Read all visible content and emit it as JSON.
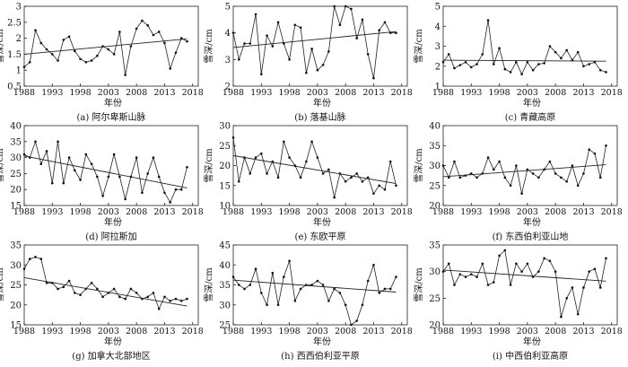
{
  "chart_data": [
    {
      "type": "line",
      "caption": "(a) 阿尔卑斯山脉",
      "xlabel": "年份",
      "ylabel": "雪深/cm",
      "xlim": [
        1988,
        2019
      ],
      "ylim": [
        0.5,
        3
      ],
      "xticks": [
        1988,
        1993,
        1998,
        2003,
        2008,
        2013,
        2018
      ],
      "yticks": [
        0.5,
        1,
        1.5,
        2,
        2.5,
        3
      ],
      "yticklabels": [
        "0.5",
        "1",
        "1.5",
        "2",
        "2.5",
        "3"
      ],
      "x": [
        1988,
        1989,
        1990,
        1991,
        1992,
        1993,
        1994,
        1995,
        1996,
        1997,
        1998,
        1999,
        2000,
        2001,
        2002,
        2003,
        2004,
        2005,
        2006,
        2007,
        2008,
        2009,
        2010,
        2011,
        2012,
        2013,
        2014,
        2015,
        2016,
        2017
      ],
      "values": [
        1.1,
        1.25,
        2.25,
        1.85,
        1.65,
        1.5,
        1.3,
        1.95,
        2.05,
        1.6,
        1.35,
        1.25,
        1.3,
        1.45,
        1.75,
        1.65,
        1.5,
        2.2,
        0.85,
        1.75,
        2.3,
        2.55,
        2.4,
        2.1,
        2.2,
        1.85,
        1.05,
        1.55,
        2.0,
        1.9
      ],
      "trend": [
        1.5,
        1.98
      ]
    },
    {
      "type": "line",
      "caption": "(b) 落基山脉",
      "xlabel": "年份",
      "ylabel": "雪深/cm",
      "xlim": [
        1988,
        2019
      ],
      "ylim": [
        2,
        5
      ],
      "xticks": [
        1988,
        1993,
        1998,
        2003,
        2008,
        2013,
        2018
      ],
      "yticks": [
        2,
        3,
        4,
        5
      ],
      "yticklabels": [
        "2",
        "3",
        "4",
        "5"
      ],
      "x": [
        1988,
        1989,
        1990,
        1991,
        1992,
        1993,
        1994,
        1995,
        1996,
        1997,
        1998,
        1999,
        2000,
        2001,
        2002,
        2003,
        2004,
        2005,
        2006,
        2007,
        2008,
        2009,
        2010,
        2011,
        2012,
        2013,
        2014,
        2015,
        2016,
        2017
      ],
      "values": [
        4.0,
        3.0,
        3.6,
        3.6,
        4.7,
        2.45,
        3.9,
        3.5,
        4.4,
        3.6,
        3.0,
        4.3,
        4.2,
        2.5,
        3.4,
        2.6,
        2.8,
        3.3,
        5.0,
        4.3,
        5.0,
        4.9,
        3.8,
        4.5,
        3.2,
        2.3,
        4.1,
        4.4,
        4.0,
        4.0
      ],
      "trend": [
        3.45,
        4.05
      ]
    },
    {
      "type": "line",
      "caption": "(c) 青藏高原",
      "xlabel": "年份",
      "ylabel": "雪深/cm",
      "xlim": [
        1988,
        2019
      ],
      "ylim": [
        1,
        5
      ],
      "xticks": [
        1988,
        1993,
        1998,
        2003,
        2008,
        2013,
        2018
      ],
      "yticks": [
        1,
        2,
        3,
        4,
        5
      ],
      "yticklabels": [
        "1",
        "2",
        "3",
        "4",
        "5"
      ],
      "x": [
        1988,
        1989,
        1990,
        1991,
        1992,
        1993,
        1994,
        1995,
        1996,
        1997,
        1998,
        1999,
        2000,
        2001,
        2002,
        2003,
        2004,
        2005,
        2006,
        2007,
        2008,
        2009,
        2010,
        2011,
        2012,
        2013,
        2014,
        2015,
        2016,
        2017
      ],
      "values": [
        2.2,
        2.6,
        1.9,
        2.05,
        2.2,
        1.95,
        2.1,
        2.6,
        4.3,
        2.1,
        2.9,
        1.85,
        1.7,
        2.2,
        1.6,
        2.2,
        1.8,
        2.1,
        2.15,
        3.0,
        2.7,
        2.4,
        2.8,
        2.3,
        2.7,
        2.0,
        2.1,
        2.2,
        1.8,
        1.7
      ],
      "trend": [
        2.3,
        2.25
      ]
    },
    {
      "type": "line",
      "caption": "(d) 阿拉斯加",
      "xlabel": "年份",
      "ylabel": "雪深/cm",
      "xlim": [
        1988,
        2019
      ],
      "ylim": [
        15,
        40
      ],
      "xticks": [
        1988,
        1993,
        1998,
        2003,
        2008,
        2013,
        2018
      ],
      "yticks": [
        15,
        20,
        25,
        30,
        35,
        40
      ],
      "yticklabels": [
        "15",
        "20",
        "25",
        "30",
        "35",
        "40"
      ],
      "x": [
        1988,
        1989,
        1990,
        1991,
        1992,
        1993,
        1994,
        1995,
        1996,
        1997,
        1998,
        1999,
        2000,
        2001,
        2002,
        2003,
        2004,
        2005,
        2006,
        2007,
        2008,
        2009,
        2010,
        2011,
        2012,
        2013,
        2014,
        2015,
        2016,
        2017
      ],
      "values": [
        31,
        30,
        35,
        28,
        32,
        22,
        35,
        22,
        30,
        26,
        23,
        31,
        28,
        24,
        18,
        24,
        31,
        24,
        17,
        24,
        30,
        19,
        25,
        30,
        24,
        19,
        16,
        20,
        20,
        27
      ],
      "trend": [
        30.5,
        20.5
      ]
    },
    {
      "type": "line",
      "caption": "(e) 东欧平原",
      "xlabel": "年份",
      "ylabel": "雪深/cm",
      "xlim": [
        1988,
        2019
      ],
      "ylim": [
        10,
        30
      ],
      "xticks": [
        1988,
        1993,
        1998,
        2003,
        2008,
        2013,
        2018
      ],
      "yticks": [
        10,
        15,
        20,
        25,
        30
      ],
      "yticklabels": [
        "10",
        "15",
        "20",
        "25",
        "30"
      ],
      "x": [
        1988,
        1989,
        1990,
        1991,
        1992,
        1993,
        1994,
        1995,
        1996,
        1997,
        1998,
        1999,
        2000,
        2001,
        2002,
        2003,
        2004,
        2005,
        2006,
        2007,
        2008,
        2009,
        2010,
        2011,
        2012,
        2013,
        2014,
        2015,
        2016,
        2017
      ],
      "values": [
        27,
        16,
        22,
        18,
        22,
        23,
        18,
        21,
        17,
        26,
        22,
        20,
        17,
        21,
        26,
        22,
        18,
        19,
        12,
        18,
        16,
        17,
        18,
        16,
        17,
        13,
        15,
        14,
        21,
        15
      ],
      "trend": [
        22.5,
        15.5
      ]
    },
    {
      "type": "line",
      "caption": "(f) 东西伯利亚山地",
      "xlabel": "年份",
      "ylabel": "雪深/cm",
      "xlim": [
        1988,
        2019
      ],
      "ylim": [
        20,
        40
      ],
      "xticks": [
        1988,
        1993,
        1998,
        2003,
        2008,
        2013,
        2018
      ],
      "yticks": [
        20,
        25,
        30,
        35,
        40
      ],
      "yticklabels": [
        "20",
        "25",
        "30",
        "35",
        "40"
      ],
      "x": [
        1988,
        1989,
        1990,
        1991,
        1992,
        1993,
        1994,
        1995,
        1996,
        1997,
        1998,
        1999,
        2000,
        2001,
        2002,
        2003,
        2004,
        2005,
        2006,
        2007,
        2008,
        2009,
        2010,
        2011,
        2012,
        2013,
        2014,
        2015,
        2016,
        2017
      ],
      "values": [
        30,
        27,
        31,
        27,
        27.5,
        28,
        27,
        28,
        32,
        29,
        31,
        27,
        25,
        30,
        23,
        29,
        28,
        27,
        29,
        31,
        28,
        27,
        26,
        30,
        25,
        28,
        34,
        33,
        27,
        35
      ],
      "trend": [
        27.2,
        30.2
      ]
    },
    {
      "type": "line",
      "caption": "(g) 加拿大北部地区",
      "xlabel": "年份",
      "ylabel": "雪深/cm",
      "xlim": [
        1988,
        2019
      ],
      "ylim": [
        15,
        35
      ],
      "xticks": [
        1988,
        1993,
        1998,
        2003,
        2008,
        2013,
        2018
      ],
      "yticks": [
        15,
        20,
        25,
        30,
        35
      ],
      "yticklabels": [
        "15",
        "20",
        "25",
        "30",
        "35"
      ],
      "x": [
        1988,
        1989,
        1990,
        1991,
        1992,
        1993,
        1994,
        1995,
        1996,
        1997,
        1998,
        1999,
        2000,
        2001,
        2002,
        2003,
        2004,
        2005,
        2006,
        2007,
        2008,
        2009,
        2010,
        2011,
        2012,
        2013,
        2014,
        2015,
        2016,
        2017
      ],
      "values": [
        29,
        31.5,
        32,
        31.5,
        25.5,
        25.5,
        24,
        24.5,
        26,
        23,
        22.5,
        24,
        25.5,
        24,
        22,
        23,
        24,
        22,
        21.5,
        24,
        23,
        21.5,
        22,
        23,
        19,
        22,
        21,
        21.5,
        21,
        21.5
      ],
      "trend": [
        26.8,
        19.7
      ]
    },
    {
      "type": "line",
      "caption": "(h) 西西伯利亚平原",
      "xlabel": "年份",
      "ylabel": "雪深/cm",
      "xlim": [
        1988,
        2019
      ],
      "ylim": [
        25,
        45
      ],
      "xticks": [
        1988,
        1993,
        1998,
        2003,
        2008,
        2013,
        2018
      ],
      "yticks": [
        25,
        30,
        35,
        40,
        45
      ],
      "yticklabels": [
        "25",
        "30",
        "35",
        "40",
        "45"
      ],
      "x": [
        1988,
        1989,
        1990,
        1991,
        1992,
        1993,
        1994,
        1995,
        1996,
        1997,
        1998,
        1999,
        2000,
        2001,
        2002,
        2003,
        2004,
        2005,
        2006,
        2007,
        2008,
        2009,
        2010,
        2011,
        2012,
        2013,
        2014,
        2015,
        2016,
        2017
      ],
      "values": [
        37,
        35,
        34,
        35,
        39,
        33,
        30,
        38,
        30,
        37,
        41,
        31,
        34,
        35,
        35,
        36,
        35,
        31,
        34,
        33,
        30,
        25,
        26,
        30,
        36,
        40,
        33,
        34,
        34,
        37
      ],
      "trend": [
        36.2,
        33.2
      ]
    },
    {
      "type": "line",
      "caption": "(i) 中西伯利亚高原",
      "xlabel": "年份",
      "ylabel": "雪深/cm",
      "xlim": [
        1988,
        2019
      ],
      "ylim": [
        20,
        35
      ],
      "xticks": [
        1988,
        1993,
        1998,
        2003,
        2008,
        2013,
        2018
      ],
      "yticks": [
        20,
        25,
        30,
        35
      ],
      "yticklabels": [
        "20",
        "25",
        "30",
        "35"
      ],
      "x": [
        1988,
        1989,
        1990,
        1991,
        1992,
        1993,
        1994,
        1995,
        1996,
        1997,
        1998,
        1999,
        2000,
        2001,
        2002,
        2003,
        2004,
        2005,
        2006,
        2007,
        2008,
        2009,
        2010,
        2011,
        2012,
        2013,
        2014,
        2015,
        2016,
        2017
      ],
      "values": [
        30,
        31.5,
        27.5,
        29.5,
        29,
        29.5,
        29,
        31.5,
        27.5,
        28,
        33,
        34,
        27.5,
        31.5,
        30,
        31.5,
        29,
        30,
        32.5,
        32,
        30,
        21.5,
        25,
        27,
        22,
        27,
        30,
        30.5,
        27,
        32.5
      ],
      "trend": [
        30.3,
        28.2
      ]
    }
  ]
}
